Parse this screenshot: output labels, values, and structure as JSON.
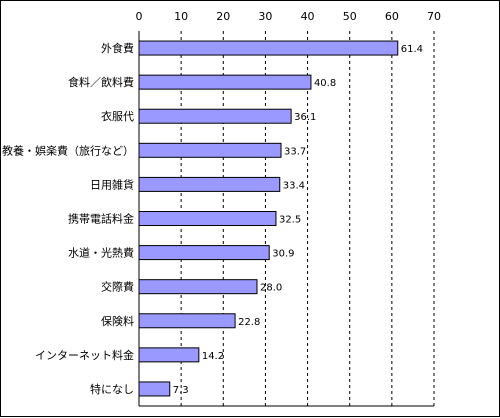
{
  "chart_data": {
    "type": "bar",
    "orientation": "horizontal",
    "categories": [
      "外食費",
      "食料／飲料費",
      "衣服代",
      "教養・娯楽費（旅行など）",
      "日用雑貨",
      "携帯電話料金",
      "水道・光熱費",
      "交際費",
      "保険料",
      "インターネット料金",
      "特になし"
    ],
    "values": [
      61.4,
      40.8,
      36.1,
      33.7,
      33.4,
      32.5,
      30.9,
      28.0,
      22.8,
      14.2,
      7.3
    ],
    "value_labels": [
      "61.4",
      "40.8",
      "36.1",
      "33.7",
      "33.4",
      "32.5",
      "30.9",
      "28.0",
      "22.8",
      "14.2",
      "7.3"
    ],
    "xlim": [
      0,
      70
    ],
    "xticks": [
      0,
      10,
      20,
      30,
      40,
      50,
      60,
      70
    ],
    "x_axis_position": "top",
    "grid": "vertical dashed",
    "colors": {
      "bar_fill": "#9999ff",
      "bar_stroke": "#000000",
      "grid": "#000000"
    }
  }
}
